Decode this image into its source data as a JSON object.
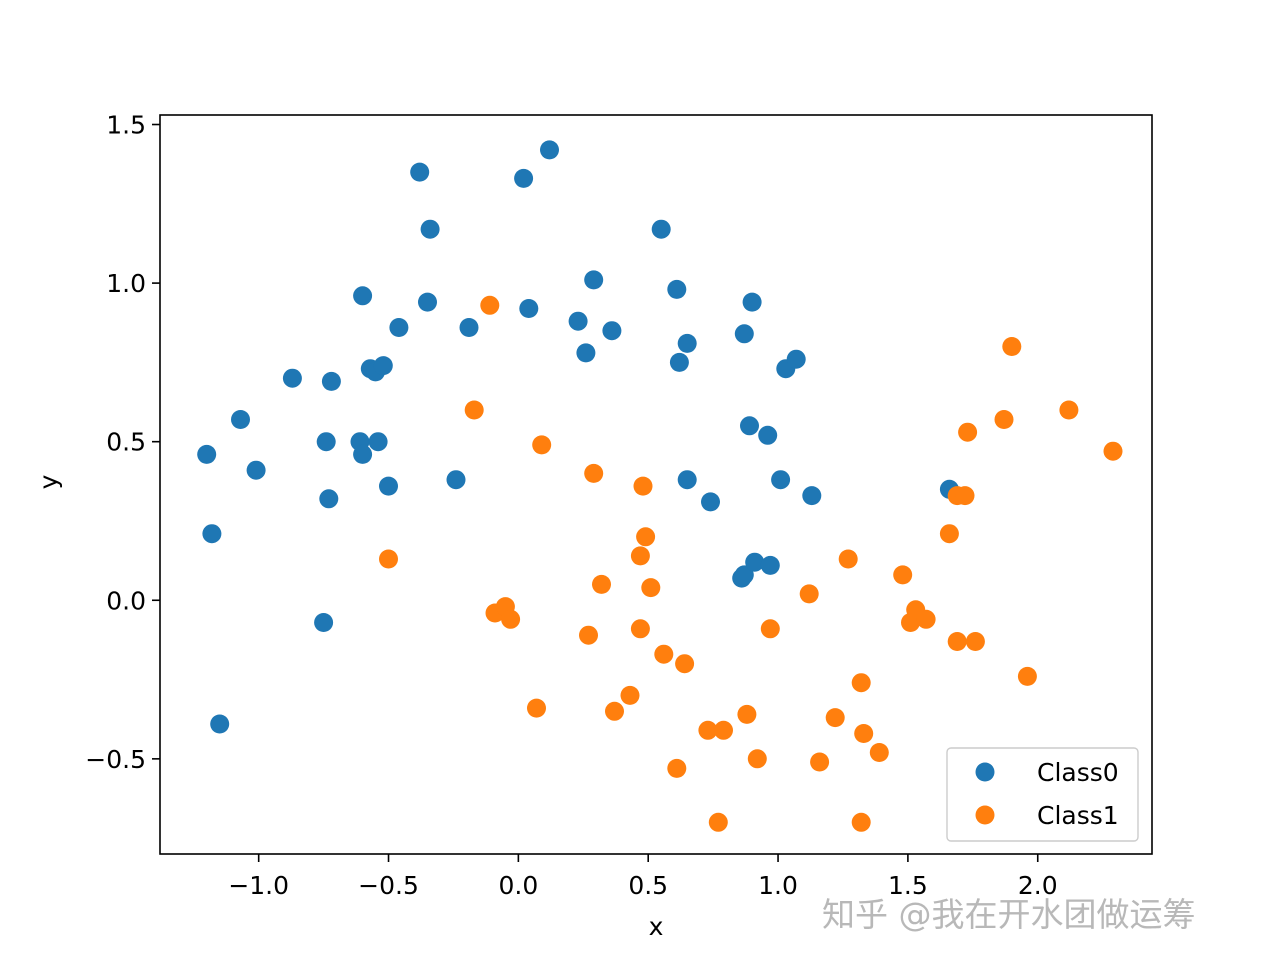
{
  "chart_data": {
    "type": "scatter",
    "title": "",
    "xlabel": "x",
    "ylabel": "y",
    "xlim": [
      -1.38,
      2.44
    ],
    "ylim": [
      -0.8,
      1.53
    ],
    "xticks": [
      -1.0,
      -0.5,
      0.0,
      0.5,
      1.0,
      1.5,
      2.0
    ],
    "xtick_labels": [
      "−1.0",
      "−0.5",
      "0.0",
      "0.5",
      "1.0",
      "1.5",
      "2.0"
    ],
    "yticks": [
      -0.5,
      0.0,
      0.5,
      1.0,
      1.5
    ],
    "ytick_labels": [
      "−0.5",
      "0.0",
      "0.5",
      "1.0",
      "1.5"
    ],
    "grid": false,
    "legend_position": "lower-right",
    "series": [
      {
        "name": "Class0",
        "color": "#1f77b4",
        "points": [
          [
            -1.2,
            0.46
          ],
          [
            -1.18,
            0.21
          ],
          [
            -1.15,
            -0.39
          ],
          [
            -1.07,
            0.57
          ],
          [
            -1.01,
            0.41
          ],
          [
            -0.87,
            0.7
          ],
          [
            -0.75,
            -0.07
          ],
          [
            -0.74,
            0.5
          ],
          [
            -0.73,
            0.32
          ],
          [
            -0.72,
            0.69
          ],
          [
            -0.61,
            0.5
          ],
          [
            -0.6,
            0.46
          ],
          [
            -0.6,
            0.96
          ],
          [
            -0.57,
            0.73
          ],
          [
            -0.55,
            0.72
          ],
          [
            -0.54,
            0.5
          ],
          [
            -0.52,
            0.74
          ],
          [
            -0.5,
            0.36
          ],
          [
            -0.46,
            0.86
          ],
          [
            -0.38,
            1.35
          ],
          [
            -0.35,
            0.94
          ],
          [
            -0.34,
            1.17
          ],
          [
            -0.24,
            0.38
          ],
          [
            -0.19,
            0.86
          ],
          [
            0.02,
            1.33
          ],
          [
            0.04,
            0.92
          ],
          [
            0.12,
            1.42
          ],
          [
            0.23,
            0.88
          ],
          [
            0.26,
            0.78
          ],
          [
            0.29,
            1.01
          ],
          [
            0.36,
            0.85
          ],
          [
            0.55,
            1.17
          ],
          [
            0.61,
            0.98
          ],
          [
            0.62,
            0.75
          ],
          [
            0.65,
            0.81
          ],
          [
            0.65,
            0.38
          ],
          [
            0.74,
            0.31
          ],
          [
            0.86,
            0.07
          ],
          [
            0.87,
            0.08
          ],
          [
            0.87,
            0.84
          ],
          [
            0.89,
            0.55
          ],
          [
            0.9,
            0.94
          ],
          [
            0.91,
            0.12
          ],
          [
            0.96,
            0.52
          ],
          [
            0.97,
            0.11
          ],
          [
            1.01,
            0.38
          ],
          [
            1.03,
            0.73
          ],
          [
            1.07,
            0.76
          ],
          [
            1.13,
            0.33
          ],
          [
            1.66,
            0.35
          ]
        ]
      },
      {
        "name": "Class1",
        "color": "#ff7f0e",
        "points": [
          [
            -0.5,
            0.13
          ],
          [
            -0.17,
            0.6
          ],
          [
            -0.11,
            0.93
          ],
          [
            -0.09,
            -0.04
          ],
          [
            -0.05,
            -0.02
          ],
          [
            -0.03,
            -0.06
          ],
          [
            0.07,
            -0.34
          ],
          [
            0.09,
            0.49
          ],
          [
            0.27,
            -0.11
          ],
          [
            0.29,
            0.4
          ],
          [
            0.32,
            0.05
          ],
          [
            0.37,
            -0.35
          ],
          [
            0.43,
            -0.3
          ],
          [
            0.47,
            -0.09
          ],
          [
            0.47,
            0.14
          ],
          [
            0.48,
            0.36
          ],
          [
            0.49,
            0.2
          ],
          [
            0.51,
            0.04
          ],
          [
            0.56,
            -0.17
          ],
          [
            0.61,
            -0.53
          ],
          [
            0.64,
            -0.2
          ],
          [
            0.73,
            -0.41
          ],
          [
            0.77,
            -0.7
          ],
          [
            0.79,
            -0.41
          ],
          [
            0.88,
            -0.36
          ],
          [
            0.92,
            -0.5
          ],
          [
            0.97,
            -0.09
          ],
          [
            1.12,
            0.02
          ],
          [
            1.16,
            -0.51
          ],
          [
            1.22,
            -0.37
          ],
          [
            1.27,
            0.13
          ],
          [
            1.32,
            -0.7
          ],
          [
            1.32,
            -0.26
          ],
          [
            1.33,
            -0.42
          ],
          [
            1.39,
            -0.48
          ],
          [
            1.48,
            0.08
          ],
          [
            1.51,
            -0.07
          ],
          [
            1.53,
            -0.03
          ],
          [
            1.57,
            -0.06
          ],
          [
            1.66,
            0.21
          ],
          [
            1.69,
            0.33
          ],
          [
            1.69,
            -0.13
          ],
          [
            1.72,
            0.33
          ],
          [
            1.73,
            0.53
          ],
          [
            1.76,
            -0.13
          ],
          [
            1.87,
            0.57
          ],
          [
            1.9,
            0.8
          ],
          [
            1.96,
            -0.24
          ],
          [
            2.12,
            0.6
          ],
          [
            2.29,
            0.47
          ]
        ]
      }
    ]
  },
  "watermark": {
    "text": "知乎 @我在开水团做运筹"
  }
}
